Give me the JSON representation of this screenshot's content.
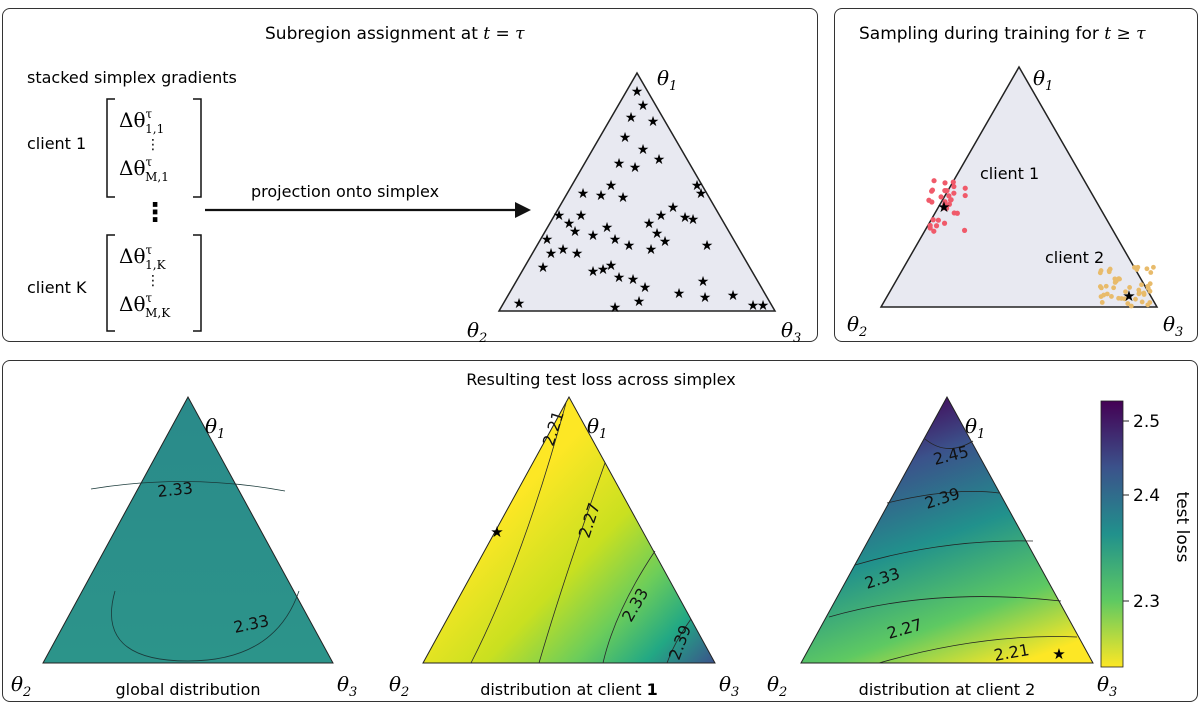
{
  "panels": {
    "subregion": {
      "title_text": "Subregion assignment at ",
      "title_math": "t = τ",
      "stacked_label": "stacked simplex gradients",
      "client_first": "client 1",
      "client_last": "client K",
      "arrow_label": "projection onto simplex",
      "grad_first_top": "Δθ",
      "grad_first_top_sup": "τ",
      "grad_first_top_sub": "1,1",
      "grad_first_bot_sub": "M,1",
      "grad_last_top_sub": "1,K",
      "grad_last_bot_sub": "M,K",
      "vdots": "⋮",
      "big_vdots": "⋮"
    },
    "sampling": {
      "title_text": "Sampling during training for ",
      "title_math": "t ≥ τ",
      "client1_label": "client 1",
      "client2_label": "client 2"
    },
    "loss": {
      "title": "Resulting test loss across simplex",
      "captions": [
        "global distribution",
        "distribution at client ",
        "distribution at client 2"
      ],
      "caption_bold_suffix": "1",
      "colorbar_label": "test loss",
      "colorbar_ticks": [
        "2.5",
        "2.4",
        "2.3"
      ]
    }
  },
  "vertex_labels": {
    "top": "θ",
    "top_sub": "1",
    "left": "θ",
    "left_sub": "2",
    "right": "θ",
    "right_sub": "3"
  },
  "contours": {
    "global": [
      "2.33",
      "2.33"
    ],
    "client1": [
      "2.21",
      "2.27",
      "2.33",
      "2.39"
    ],
    "client2": [
      "2.45",
      "2.39",
      "2.33",
      "2.27",
      "2.21"
    ]
  },
  "colors": {
    "simplex_fill": "#e8e9f1",
    "client1_points": "#f05a6a",
    "client2_points": "#e8bb6b",
    "global_fill": "#2a8f8a",
    "viridis": [
      "#440154",
      "#3b528b",
      "#21918c",
      "#5ec962",
      "#fde725"
    ]
  }
}
